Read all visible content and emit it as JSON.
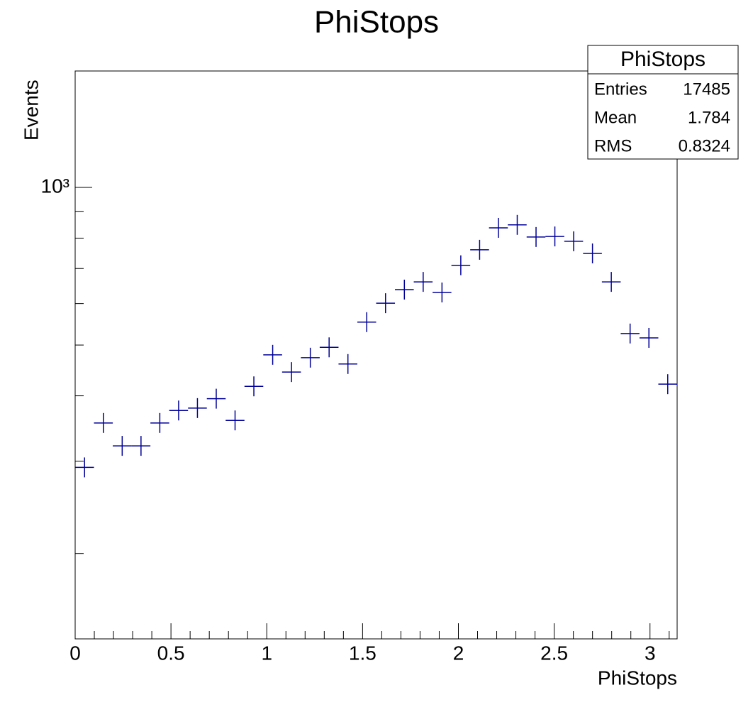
{
  "chart_data": {
    "type": "histogram",
    "title": "PhiStops",
    "xlabel": "PhiStops",
    "ylabel": "Events",
    "bins": [
      0,
      0.0981748,
      0.1963495,
      0.2945243,
      0.3926991,
      0.4908739,
      0.5890486,
      0.6872234,
      0.7853982,
      0.8835729,
      0.9817477,
      1.0799225,
      1.1780972,
      1.276272,
      1.3744468,
      1.4726216,
      1.5707963,
      1.6689711,
      1.7671459,
      1.8653206,
      1.9634954,
      2.0616702,
      2.1598449,
      2.2580197,
      2.3561945,
      2.4543693,
      2.552544,
      2.6507188,
      2.7488936,
      2.8470683,
      2.9452431,
      3.0434179,
      3.1415927
    ],
    "values": [
      292,
      355,
      321,
      321,
      355,
      375,
      379,
      395,
      359,
      417,
      479,
      444,
      473,
      495,
      460,
      553,
      601,
      638,
      660,
      630,
      710,
      760,
      837,
      848,
      804,
      806,
      789,
      748,
      660,
      526,
      516,
      421
    ],
    "color": "#000099",
    "xlim": [
      0,
      3.1415927
    ],
    "xticks": [
      0,
      0.5,
      1,
      1.5,
      2,
      2.5,
      3
    ],
    "xminor": [
      0.1,
      0.2,
      0.3,
      0.4,
      0.6,
      0.7,
      0.8,
      0.9,
      1.1,
      1.2,
      1.3,
      1.4,
      1.6,
      1.7,
      1.8,
      1.9,
      2.1,
      2.2,
      2.3,
      2.4,
      2.6,
      2.7,
      2.8,
      2.9,
      3.1
    ],
    "ylim": [
      137.4,
      1668
    ],
    "log_y": true,
    "yticks": [
      {
        "value": 1000,
        "label": "10³"
      }
    ],
    "yminor": [
      200,
      300,
      400,
      500,
      600,
      700,
      800,
      900
    ],
    "stats": {
      "title": "PhiStops",
      "rows": [
        [
          "Entries",
          17485
        ],
        [
          "Mean",
          1.784
        ],
        [
          "RMS",
          0.8324
        ]
      ]
    }
  }
}
